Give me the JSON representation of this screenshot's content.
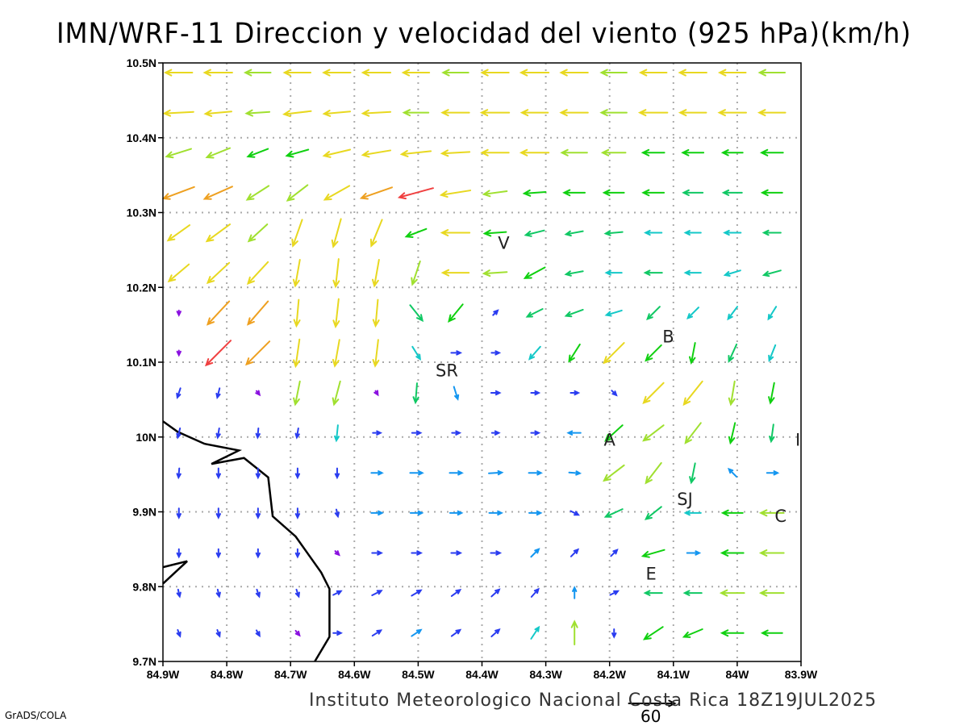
{
  "title": "IMN/WRF-11 Direccion y velocidad del viento (925 hPa)(km/h)",
  "footer": "Instituto Meteorologico Nacional Costa Rica 18Z19JUL2025",
  "credit": "GrADS/COLA",
  "reference_vector": {
    "value": 60,
    "label": "60"
  },
  "axes": {
    "lon_range": [
      -84.9,
      -83.9
    ],
    "lat_range": [
      9.7,
      10.5
    ],
    "x_ticks": [
      "84.9W",
      "84.8W",
      "84.7W",
      "84.6W",
      "84.5W",
      "84.4W",
      "84.3W",
      "84.2W",
      "84.1W",
      "84W",
      "83.9W"
    ],
    "y_ticks": [
      "10.5N",
      "10.4N",
      "10.3N",
      "10.2N",
      "10.1N",
      "10N",
      "9.9N",
      "9.8N",
      "9.7N"
    ]
  },
  "places": [
    {
      "name": "V",
      "lon": -84.366,
      "lat": 10.26
    },
    {
      "name": "B",
      "lon": -84.108,
      "lat": 10.135
    },
    {
      "name": "SR",
      "lon": -84.455,
      "lat": 10.09
    },
    {
      "name": "A",
      "lon": -84.2,
      "lat": 9.997
    },
    {
      "name": "I",
      "lon": -83.905,
      "lat": 9.997
    },
    {
      "name": "SJ",
      "lon": -84.082,
      "lat": 9.918
    },
    {
      "name": "C",
      "lon": -83.932,
      "lat": 9.895
    },
    {
      "name": "E",
      "lon": -84.135,
      "lat": 9.818
    }
  ],
  "coastline": [
    [
      [
        -84.9,
        10.021
      ],
      [
        -84.877,
        10.007
      ],
      [
        -84.835,
        9.991
      ],
      [
        -84.781,
        9.982
      ],
      [
        -84.824,
        9.964
      ],
      [
        -84.773,
        9.972
      ],
      [
        -84.735,
        9.946
      ],
      [
        -84.728,
        9.894
      ],
      [
        -84.692,
        9.867
      ],
      [
        -84.652,
        9.819
      ],
      [
        -84.639,
        9.797
      ],
      [
        -84.639,
        9.733
      ],
      [
        -84.662,
        9.7
      ]
    ],
    [
      [
        -84.9,
        9.826
      ],
      [
        -84.862,
        9.834
      ],
      [
        -84.9,
        9.804
      ]
    ]
  ],
  "wind_grid": {
    "units": "km/h",
    "lon_start": -84.875,
    "lon_step": 0.062,
    "lat_start": 10.487,
    "lat_step": -0.0535,
    "uv_rows": [
      [
        [
          -35,
          0
        ],
        [
          -36,
          0
        ],
        [
          -33,
          0
        ],
        [
          -34,
          0
        ],
        [
          -35,
          0
        ],
        [
          -36,
          0
        ],
        [
          -34,
          0
        ],
        [
          -33,
          0
        ],
        [
          -35,
          0
        ],
        [
          -36,
          0
        ],
        [
          -35,
          0
        ],
        [
          -33,
          0
        ],
        [
          -34,
          0
        ],
        [
          -35,
          0
        ],
        [
          -34,
          0
        ],
        [
          -33,
          0
        ]
      ],
      [
        [
          -38,
          -2
        ],
        [
          -34,
          -3
        ],
        [
          -30,
          -2
        ],
        [
          -35,
          -4
        ],
        [
          -34,
          -3
        ],
        [
          -36,
          -2
        ],
        [
          -32,
          0
        ],
        [
          -35,
          0
        ],
        [
          -36,
          0
        ],
        [
          -34,
          0
        ],
        [
          -35,
          0
        ],
        [
          -33,
          0
        ],
        [
          -36,
          0
        ],
        [
          -34,
          0
        ],
        [
          -35,
          0
        ],
        [
          -34,
          0
        ]
      ],
      [
        [
          -32,
          -10
        ],
        [
          -30,
          -12
        ],
        [
          -26,
          -10
        ],
        [
          -28,
          -8
        ],
        [
          -34,
          -8
        ],
        [
          -36,
          -6
        ],
        [
          -38,
          -4
        ],
        [
          -36,
          -2
        ],
        [
          -35,
          0
        ],
        [
          -36,
          0
        ],
        [
          -33,
          0
        ],
        [
          -30,
          0
        ],
        [
          -28,
          0
        ],
        [
          -27,
          0
        ],
        [
          -26,
          0
        ],
        [
          -28,
          0
        ]
      ],
      [
        [
          -40,
          -15
        ],
        [
          -36,
          -16
        ],
        [
          -28,
          -18
        ],
        [
          -26,
          -20
        ],
        [
          -32,
          -18
        ],
        [
          -40,
          -14
        ],
        [
          -44,
          -12
        ],
        [
          -38,
          -6
        ],
        [
          -30,
          -4
        ],
        [
          -28,
          -2
        ],
        [
          -27,
          0
        ],
        [
          -26,
          0
        ],
        [
          -27,
          0
        ],
        [
          -25,
          0
        ],
        [
          -24,
          0
        ],
        [
          -26,
          0
        ]
      ],
      [
        [
          -28,
          -20
        ],
        [
          -30,
          -22
        ],
        [
          -24,
          -22
        ],
        [
          -12,
          -34
        ],
        [
          -10,
          -36
        ],
        [
          -14,
          -34
        ],
        [
          -26,
          -10
        ],
        [
          -36,
          0
        ],
        [
          -28,
          -2
        ],
        [
          -24,
          -6
        ],
        [
          -22,
          -4
        ],
        [
          -22,
          -2
        ],
        [
          -21,
          0
        ],
        [
          -20,
          0
        ],
        [
          -21,
          0
        ],
        [
          -22,
          0
        ]
      ],
      [
        [
          -26,
          -22
        ],
        [
          -28,
          -26
        ],
        [
          -26,
          -28
        ],
        [
          -6,
          -34
        ],
        [
          -4,
          -36
        ],
        [
          -6,
          -34
        ],
        [
          -10,
          -30
        ],
        [
          -34,
          0
        ],
        [
          -30,
          -2
        ],
        [
          -26,
          -14
        ],
        [
          -22,
          -4
        ],
        [
          -20,
          0
        ],
        [
          -22,
          0
        ],
        [
          -20,
          0
        ],
        [
          -20,
          -6
        ],
        [
          -22,
          -6
        ]
      ],
      [
        [
          0,
          -6
        ],
        [
          -28,
          -30
        ],
        [
          -26,
          -30
        ],
        [
          -3,
          -34
        ],
        [
          -4,
          -36
        ],
        [
          -3,
          -34
        ],
        [
          16,
          -20
        ],
        [
          -18,
          -22
        ],
        [
          6,
          6
        ],
        [
          -20,
          -10
        ],
        [
          -22,
          -8
        ],
        [
          -20,
          -6
        ],
        [
          -16,
          -16
        ],
        [
          -14,
          -14
        ],
        [
          -12,
          -16
        ],
        [
          -10,
          -16
        ]
      ],
      [
        [
          0,
          -6
        ],
        [
          -32,
          -32
        ],
        [
          -30,
          -30
        ],
        [
          -5,
          -35
        ],
        [
          -6,
          -34
        ],
        [
          -4,
          -34
        ],
        [
          10,
          -16
        ],
        [
          12,
          0
        ],
        [
          10,
          0
        ],
        [
          -14,
          -16
        ],
        [
          -14,
          -22
        ],
        [
          -26,
          -26
        ],
        [
          -20,
          -20
        ],
        [
          -5,
          -26
        ],
        [
          -10,
          -22
        ],
        [
          -8,
          -20
        ]
      ],
      [
        [
          -4,
          -12
        ],
        [
          -3,
          -12
        ],
        [
          4,
          -5
        ],
        [
          -6,
          -30
        ],
        [
          -8,
          -30
        ],
        [
          3,
          -5
        ],
        [
          -2,
          -25
        ],
        [
          5,
          -16
        ],
        [
          11,
          0
        ],
        [
          10,
          0
        ],
        [
          10,
          0
        ],
        [
          6,
          -6
        ],
        [
          -26,
          -26
        ],
        [
          -24,
          -30
        ],
        [
          -5,
          -30
        ],
        [
          -5,
          -26
        ]
      ],
      [
        [
          -3,
          -12
        ],
        [
          -2,
          -12
        ],
        [
          -1,
          -12
        ],
        [
          -2,
          -12
        ],
        [
          -2,
          -20
        ],
        [
          10,
          0
        ],
        [
          11,
          0
        ],
        [
          10,
          0
        ],
        [
          9,
          0
        ],
        [
          10,
          0
        ],
        [
          -16,
          0
        ],
        [
          -22,
          -20
        ],
        [
          -26,
          -20
        ],
        [
          -20,
          -26
        ],
        [
          -6,
          -26
        ],
        [
          -3,
          -22
        ]
      ],
      [
        [
          -1,
          -12
        ],
        [
          0,
          -12
        ],
        [
          0,
          -12
        ],
        [
          0,
          -12
        ],
        [
          0,
          -12
        ],
        [
          14,
          0
        ],
        [
          16,
          0
        ],
        [
          16,
          0
        ],
        [
          17,
          1
        ],
        [
          16,
          0
        ],
        [
          14,
          -1
        ],
        [
          -26,
          -20
        ],
        [
          -20,
          -26
        ],
        [
          -5,
          -25
        ],
        [
          -10,
          10
        ],
        [
          14,
          0
        ]
      ],
      [
        [
          0,
          -12
        ],
        [
          0,
          -12
        ],
        [
          0,
          -12
        ],
        [
          0,
          -12
        ],
        [
          2,
          -9
        ],
        [
          14,
          0
        ],
        [
          15,
          0
        ],
        [
          15,
          0
        ],
        [
          16,
          0
        ],
        [
          15,
          0
        ],
        [
          10,
          -5
        ],
        [
          -22,
          -10
        ],
        [
          -20,
          -16
        ],
        [
          -20,
          0
        ],
        [
          -26,
          0
        ],
        [
          -30,
          0
        ]
      ],
      [
        [
          0,
          -10
        ],
        [
          0,
          -10
        ],
        [
          0,
          -10
        ],
        [
          0,
          -10
        ],
        [
          5,
          -5
        ],
        [
          12,
          0
        ],
        [
          12,
          0
        ],
        [
          12,
          0
        ],
        [
          12,
          0
        ],
        [
          10,
          10
        ],
        [
          9,
          9
        ],
        [
          8,
          8
        ],
        [
          -28,
          -8
        ],
        [
          16,
          0
        ],
        [
          -28,
          0
        ],
        [
          -30,
          0
        ]
      ],
      [
        [
          2,
          -9
        ],
        [
          2,
          -9
        ],
        [
          3,
          -9
        ],
        [
          3,
          -9
        ],
        [
          10,
          5
        ],
        [
          12,
          6
        ],
        [
          12,
          7
        ],
        [
          11,
          8
        ],
        [
          10,
          9
        ],
        [
          9,
          10
        ],
        [
          0,
          14
        ],
        [
          10,
          5
        ],
        [
          -22,
          0
        ],
        [
          -22,
          0
        ],
        [
          -30,
          0
        ],
        [
          -30,
          0
        ]
      ],
      [
        [
          3,
          -8
        ],
        [
          3,
          -8
        ],
        [
          4,
          -7
        ],
        [
          5,
          -6
        ],
        [
          10,
          0
        ],
        [
          11,
          7
        ],
        [
          12,
          8
        ],
        [
          11,
          8
        ],
        [
          10,
          9
        ],
        [
          10,
          15
        ],
        [
          0,
          30
        ],
        [
          0,
          -10
        ],
        [
          -24,
          -16
        ],
        [
          -24,
          -10
        ],
        [
          -28,
          0
        ],
        [
          -26,
          0
        ]
      ]
    ]
  },
  "speed_colors": {
    "thresholds": [
      8,
      14,
      18,
      22,
      26,
      30,
      34,
      39,
      44
    ],
    "colors": [
      "#8a10e0",
      "#2a3cf0",
      "#1496f0",
      "#14c8c8",
      "#10c864",
      "#10d010",
      "#a0e030",
      "#e8d820",
      "#eea020",
      "#f04040",
      "#f00a80"
    ]
  },
  "colors": {
    "coast": "#000000",
    "grid": "#aaaaaa",
    "frame": "#000000"
  }
}
